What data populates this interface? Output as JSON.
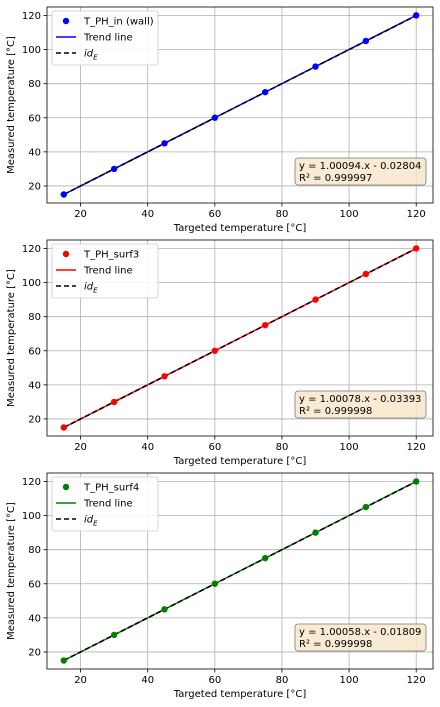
{
  "chart_data": [
    {
      "type": "scatter",
      "xlabel": "Targeted temperature [°C]",
      "ylabel": "Measured temperature [°C]",
      "xlim": [
        10,
        125
      ],
      "ylim": [
        10,
        125
      ],
      "xticks": [
        "20",
        "40",
        "60",
        "80",
        "100",
        "120"
      ],
      "yticks": [
        "20",
        "40",
        "60",
        "80",
        "100",
        "120"
      ],
      "grid": true,
      "legend_position": "top-left",
      "color": "#0000ff",
      "legend": [
        "T_PH_in (wall)",
        "Trend line",
        "id"
      ],
      "legend_sub": "E",
      "x": [
        15,
        30,
        45,
        60,
        75,
        90,
        105,
        120
      ],
      "y": [
        15.01,
        30.0,
        45.01,
        60.03,
        75.04,
        90.06,
        105.07,
        120.08
      ],
      "trend": {
        "slope": 1.00094,
        "intercept": -0.02804
      },
      "equation": "y = 1.00094.x - 0.02804",
      "r2": "R² = 0.999997"
    },
    {
      "type": "scatter",
      "xlabel": "Targeted temperature [°C]",
      "ylabel": "Measured temperature [°C]",
      "xlim": [
        10,
        125
      ],
      "ylim": [
        10,
        125
      ],
      "xticks": [
        "20",
        "40",
        "60",
        "80",
        "100",
        "120"
      ],
      "yticks": [
        "20",
        "40",
        "60",
        "80",
        "100",
        "120"
      ],
      "grid": true,
      "legend_position": "top-left",
      "color": "#ff0000",
      "legend": [
        "T_PH_surf3",
        "Trend line",
        "id"
      ],
      "legend_sub": "E",
      "x": [
        15,
        30,
        45,
        60,
        75,
        90,
        105,
        120
      ],
      "y": [
        14.98,
        29.99,
        45.0,
        60.01,
        75.03,
        90.04,
        105.05,
        120.06
      ],
      "trend": {
        "slope": 1.00078,
        "intercept": -0.03393
      },
      "equation": "y = 1.00078.x - 0.03393",
      "r2": "R² = 0.999998"
    },
    {
      "type": "scatter",
      "xlabel": "Targeted temperature [°C]",
      "ylabel": "Measured temperature [°C]",
      "xlim": [
        10,
        125
      ],
      "ylim": [
        10,
        125
      ],
      "xticks": [
        "20",
        "40",
        "60",
        "80",
        "100",
        "120"
      ],
      "yticks": [
        "20",
        "40",
        "60",
        "80",
        "100",
        "120"
      ],
      "grid": true,
      "legend_position": "top-left",
      "color": "#008000",
      "legend": [
        "T_PH_surf4",
        "Trend line",
        "id"
      ],
      "legend_sub": "E",
      "x": [
        15,
        30,
        45,
        60,
        75,
        90,
        105,
        120
      ],
      "y": [
        14.99,
        30.0,
        45.01,
        60.02,
        75.03,
        90.03,
        105.04,
        120.05
      ],
      "trend": {
        "slope": 1.00058,
        "intercept": -0.01809
      },
      "equation": "y = 1.00058.x - 0.01809",
      "r2": "R² = 0.999998"
    }
  ]
}
